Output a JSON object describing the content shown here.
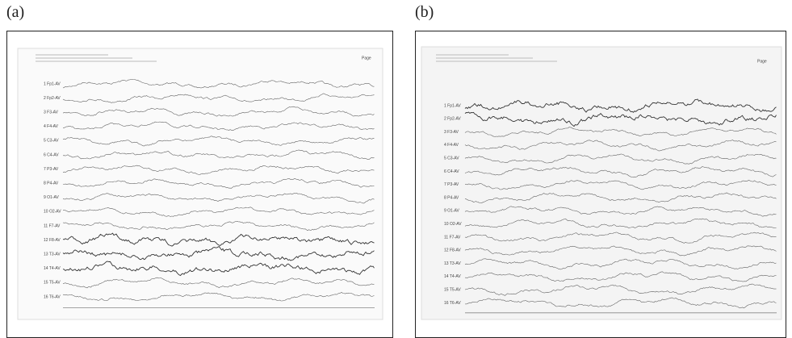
{
  "panels": [
    {
      "label": "(a)",
      "page_label": "Page",
      "channels": [
        "1 Fp1-AV",
        "2 Fp2-AV",
        "3 F3-AV",
        "4 F4-AV",
        "5 C3-AV",
        "6 C4-AV",
        "7 P3-AV",
        "8 P4-AV",
        "9 O1-AV",
        "10 O2-AV",
        "11 F7-AV",
        "12 F8-AV",
        "13 T3-AV",
        "14 T4-AV",
        "15 T5-AV",
        "16 T6-AV"
      ]
    },
    {
      "label": "(b)",
      "page_label": "Page",
      "channels": [
        "1 Fp1-AV",
        "2 Fp2-AV",
        "3 F3-AV",
        "4 F4-AV",
        "5 C3-AV",
        "6 C4-AV",
        "7 P3-AV",
        "8 P4-AV",
        "9 O1-AV",
        "10 O2-AV",
        "11 F7-AV",
        "12 F8-AV",
        "13 T3-AV",
        "14 T4-AV",
        "15 T5-AV",
        "16 T6-AV"
      ]
    }
  ]
}
